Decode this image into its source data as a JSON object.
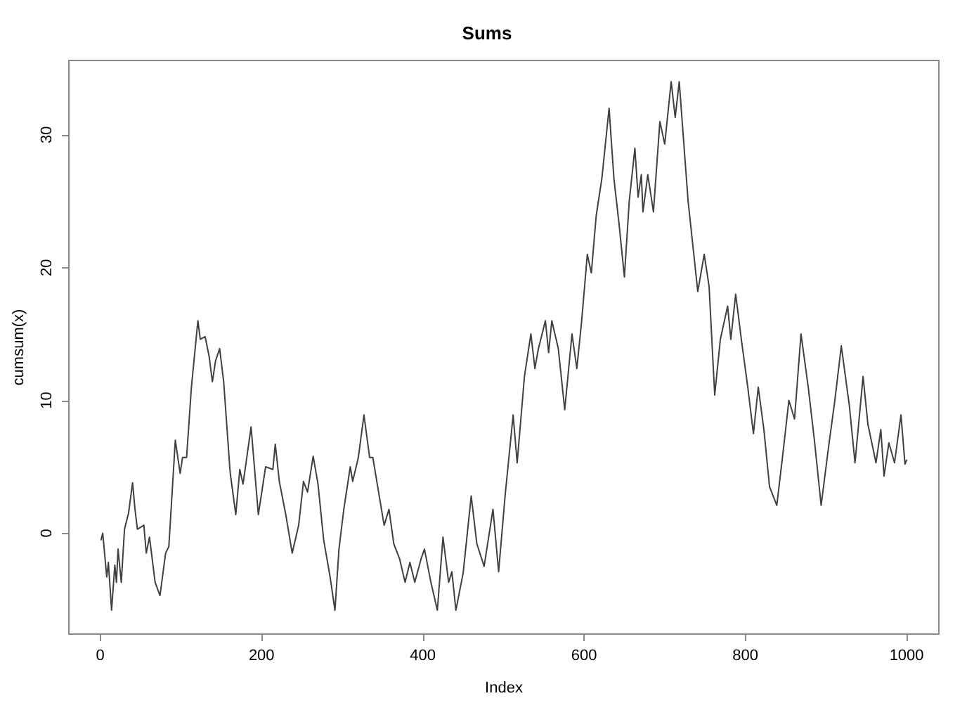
{
  "chart_data": {
    "type": "line",
    "title": "Sums",
    "xlabel": "Index",
    "ylabel": "cumsum(x)",
    "x": [
      1,
      3,
      8,
      10,
      14,
      18,
      20,
      22,
      26,
      30,
      35,
      40,
      43,
      46,
      54,
      57,
      61,
      68,
      74,
      81,
      85,
      93,
      99,
      102,
      107,
      113,
      121,
      124,
      130,
      135,
      139,
      143,
      148,
      153,
      161,
      168,
      173,
      177,
      187,
      196,
      205,
      214,
      217,
      222,
      230,
      238,
      246,
      252,
      257,
      264,
      270,
      277,
      285,
      291,
      296,
      302,
      310,
      313,
      320,
      327,
      334,
      338,
      341,
      352,
      358,
      364,
      371,
      378,
      384,
      390,
      398,
      402,
      410,
      418,
      425,
      432,
      436,
      441,
      450,
      460,
      467,
      476,
      487,
      494,
      502,
      512,
      517,
      526,
      534,
      539,
      543,
      552,
      556,
      560,
      568,
      576,
      585,
      591,
      597,
      604,
      609,
      615,
      622,
      631,
      637,
      643,
      650,
      656,
      663,
      667,
      671,
      673,
      679,
      686,
      694,
      700,
      708,
      713,
      718,
      729,
      741,
      749,
      755,
      762,
      769,
      778,
      782,
      788,
      795,
      803,
      810,
      816,
      823,
      830,
      839,
      846,
      854,
      861,
      869,
      878,
      886,
      894,
      903,
      911,
      919,
      929,
      936,
      946,
      952,
      962,
      968,
      972,
      978,
      985,
      993,
      998,
      1000
    ],
    "series": [
      {
        "color": "#404040",
        "values": [
          -0.5,
          0,
          -3.3,
          -2.2,
          -5.8,
          -2.4,
          -3.7,
          -1.2,
          -3.7,
          0.3,
          1.5,
          3.8,
          1.8,
          0.3,
          0.6,
          -1.5,
          -0.3,
          -3.7,
          -4.7,
          -1.5,
          -1,
          7,
          4.5,
          5.7,
          5.7,
          11,
          16,
          14.6,
          14.8,
          13.3,
          11.4,
          13,
          13.9,
          11.4,
          4.6,
          1.4,
          4.8,
          3.7,
          8,
          1.4,
          5,
          4.8,
          6.7,
          3.9,
          1.4,
          -1.5,
          0.6,
          3.9,
          3.1,
          5.8,
          3.7,
          -0.5,
          -3.3,
          -5.8,
          -1.2,
          1.8,
          5,
          3.9,
          5.7,
          8.9,
          5.7,
          5.7,
          4.6,
          0.6,
          1.8,
          -0.8,
          -1.9,
          -3.7,
          -2.2,
          -3.7,
          -1.9,
          -1.2,
          -3.7,
          -5.8,
          -0.3,
          -3.7,
          -2.9,
          -5.8,
          -3,
          2.8,
          -0.8,
          -2.5,
          1.8,
          -2.9,
          2.8,
          8.9,
          5.3,
          11.8,
          15,
          12.4,
          13.8,
          16,
          13.6,
          16,
          13.9,
          9.3,
          15,
          12.4,
          16,
          21,
          19.6,
          23.9,
          26.7,
          32,
          26.7,
          23.5,
          19.3,
          25,
          29,
          25.3,
          27,
          24.2,
          27,
          24.2,
          31,
          29.3,
          34,
          31.3,
          34,
          25,
          18.2,
          21,
          18.6,
          10.4,
          14.6,
          17.1,
          14.6,
          18,
          14.6,
          11,
          7.5,
          11,
          7.8,
          3.5,
          2.1,
          5.7,
          10,
          8.6,
          15,
          11,
          6.8,
          2.1,
          6.4,
          10,
          14.1,
          9.6,
          5.3,
          11.8,
          8.2,
          5.3,
          7.8,
          4.3,
          6.8,
          5.3,
          8.9,
          5.2,
          5.5
        ]
      }
    ],
    "xlim": [
      -39,
      1040
    ],
    "xticks": [
      0,
      200,
      400,
      600,
      800,
      1000
    ],
    "ylim": [
      -7.6,
      35.6
    ],
    "yticks": [
      0,
      10,
      20,
      30
    ],
    "marker": "none",
    "line_style": "solid"
  }
}
